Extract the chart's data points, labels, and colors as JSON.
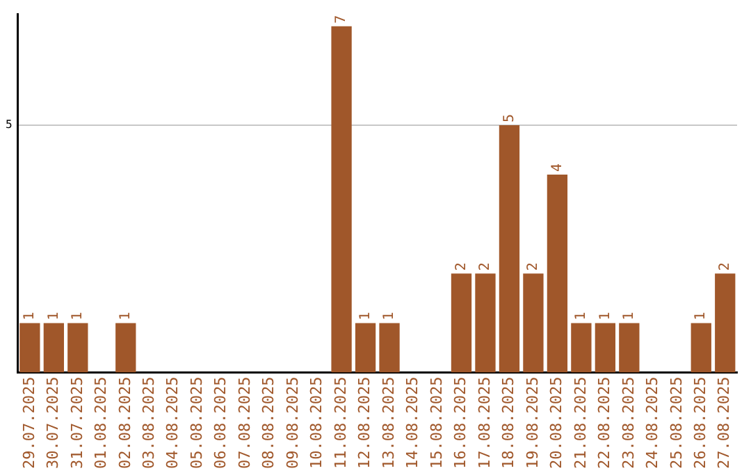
{
  "chart_data": {
    "type": "bar",
    "categories": [
      "29.07.2025",
      "30.07.2025",
      "31.07.2025",
      "01.08.2025",
      "02.08.2025",
      "03.08.2025",
      "04.08.2025",
      "05.08.2025",
      "06.08.2025",
      "07.08.2025",
      "08.08.2025",
      "09.08.2025",
      "10.08.2025",
      "11.08.2025",
      "12.08.2025",
      "13.08.2025",
      "14.08.2025",
      "15.08.2025",
      "16.08.2025",
      "17.08.2025",
      "18.08.2025",
      "19.08.2025",
      "20.08.2025",
      "21.08.2025",
      "22.08.2025",
      "23.08.2025",
      "24.08.2025",
      "25.08.2025",
      "26.08.2025",
      "27.08.2025"
    ],
    "values": [
      1,
      1,
      1,
      0,
      1,
      0,
      0,
      0,
      0,
      0,
      0,
      0,
      0,
      7,
      1,
      1,
      0,
      0,
      2,
      2,
      5,
      2,
      4,
      1,
      1,
      1,
      0,
      0,
      1,
      2
    ],
    "value_labels": [
      "1",
      "1",
      "1",
      null,
      "1",
      null,
      null,
      null,
      null,
      null,
      null,
      null,
      null,
      "7",
      "1",
      "1",
      null,
      null,
      "2",
      "2",
      "5",
      "2",
      "4",
      "1",
      "1",
      "1",
      null,
      null,
      "1",
      "2"
    ],
    "color": "#a0572a",
    "ylim": [
      0,
      7.25
    ],
    "yticks": [
      5
    ],
    "grid": "y",
    "legend": false
  }
}
